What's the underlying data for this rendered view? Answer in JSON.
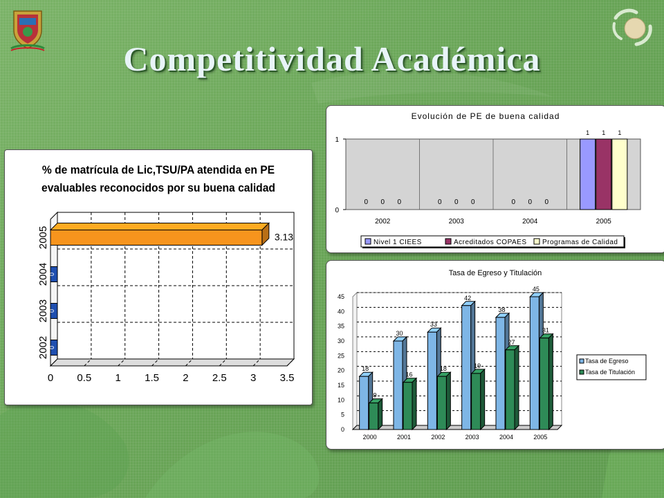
{
  "title": "Competitividad Académica",
  "colors": {
    "background": "#6fa85e",
    "title_text": "#e8f4f8",
    "bar_orange": "#f7941d",
    "nivel1": "#9999ff",
    "acreditados": "#993366",
    "calidad": "#ffffcc",
    "egreso": "#7eb6e6",
    "titulacion": "#2e8b57"
  },
  "icons": [
    "university-crest-icon",
    "recycle-logo-icon"
  ],
  "chart_data": [
    {
      "type": "bar",
      "orientation": "horizontal",
      "title": "% de matrícula de Lic,TSU/PA atendida en PE evaluables reconocidos por su buena calidad",
      "title_lines": [
        "% de matrícula de Lic,TSU/PA atendida en PE",
        "evaluables reconocidos por su buena calidad"
      ],
      "categories": [
        "2005",
        "2004",
        "2003",
        "2002"
      ],
      "values": [
        3.13,
        0,
        0,
        0
      ],
      "data_labels": [
        "3.13",
        "0",
        "0",
        "0"
      ],
      "xlim": [
        0,
        3.5
      ],
      "xticks": [
        "0",
        "0.5",
        "1",
        "1.5",
        "2",
        "2.5",
        "3",
        "3.5"
      ],
      "grid": true,
      "legend": "none"
    },
    {
      "type": "bar",
      "title": "Evolución de PE de buena calidad",
      "categories": [
        "2002",
        "2003",
        "2004",
        "2005"
      ],
      "series": [
        {
          "name": "Nivel 1 CIEES",
          "values": [
            0,
            0,
            0,
            1
          ]
        },
        {
          "name": "Acreditados COPAES",
          "values": [
            0,
            0,
            0,
            1
          ]
        },
        {
          "name": "Programas de Calidad",
          "values": [
            0,
            0,
            0,
            1
          ]
        }
      ],
      "ylim": [
        0,
        1
      ],
      "yticks": [
        "0",
        "1"
      ],
      "grid": true,
      "legend": "bottom"
    },
    {
      "type": "bar",
      "title": "Tasa de Egreso y Titulación",
      "categories": [
        "2000",
        "2001",
        "2002",
        "2003",
        "2004",
        "2005"
      ],
      "series": [
        {
          "name": "Tasa de Egreso",
          "values": [
            18,
            30,
            33,
            42,
            38,
            45
          ]
        },
        {
          "name": "Tasa de Titulación",
          "values": [
            9,
            16,
            18,
            19,
            27,
            31
          ]
        }
      ],
      "ylim": [
        0,
        45
      ],
      "yticks": [
        "0",
        "5",
        "10",
        "15",
        "20",
        "25",
        "30",
        "35",
        "40",
        "45"
      ],
      "grid": true,
      "legend": "right"
    }
  ]
}
